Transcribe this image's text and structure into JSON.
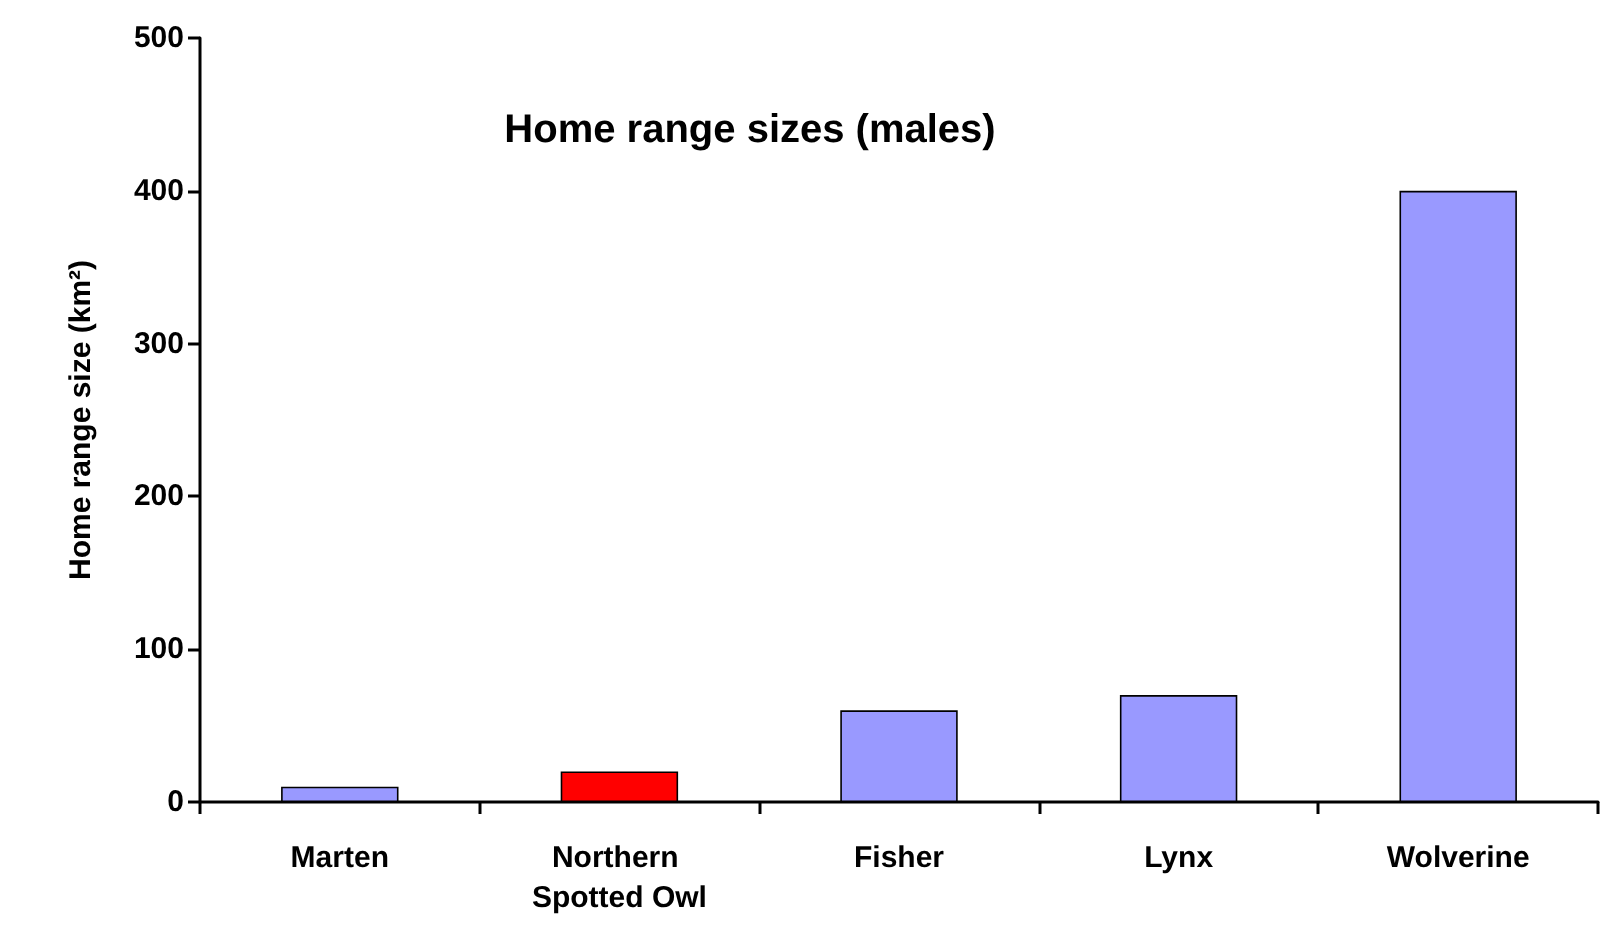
{
  "chart_data": {
    "type": "bar",
    "title": "Home range sizes (males)",
    "ylabel": "Home range size (km²)",
    "categories": [
      "Marten",
      "Northern Spotted Owl",
      "Fisher",
      "Lynx",
      "Wolverine"
    ],
    "values": [
      10,
      20,
      60,
      70,
      400
    ],
    "colors": [
      "#9999ff",
      "#ff0000",
      "#9999ff",
      "#9999ff",
      "#9999ff"
    ],
    "ylim": [
      0,
      500
    ],
    "yticks": [
      0,
      100,
      200,
      300,
      400,
      500
    ],
    "grid": false
  }
}
